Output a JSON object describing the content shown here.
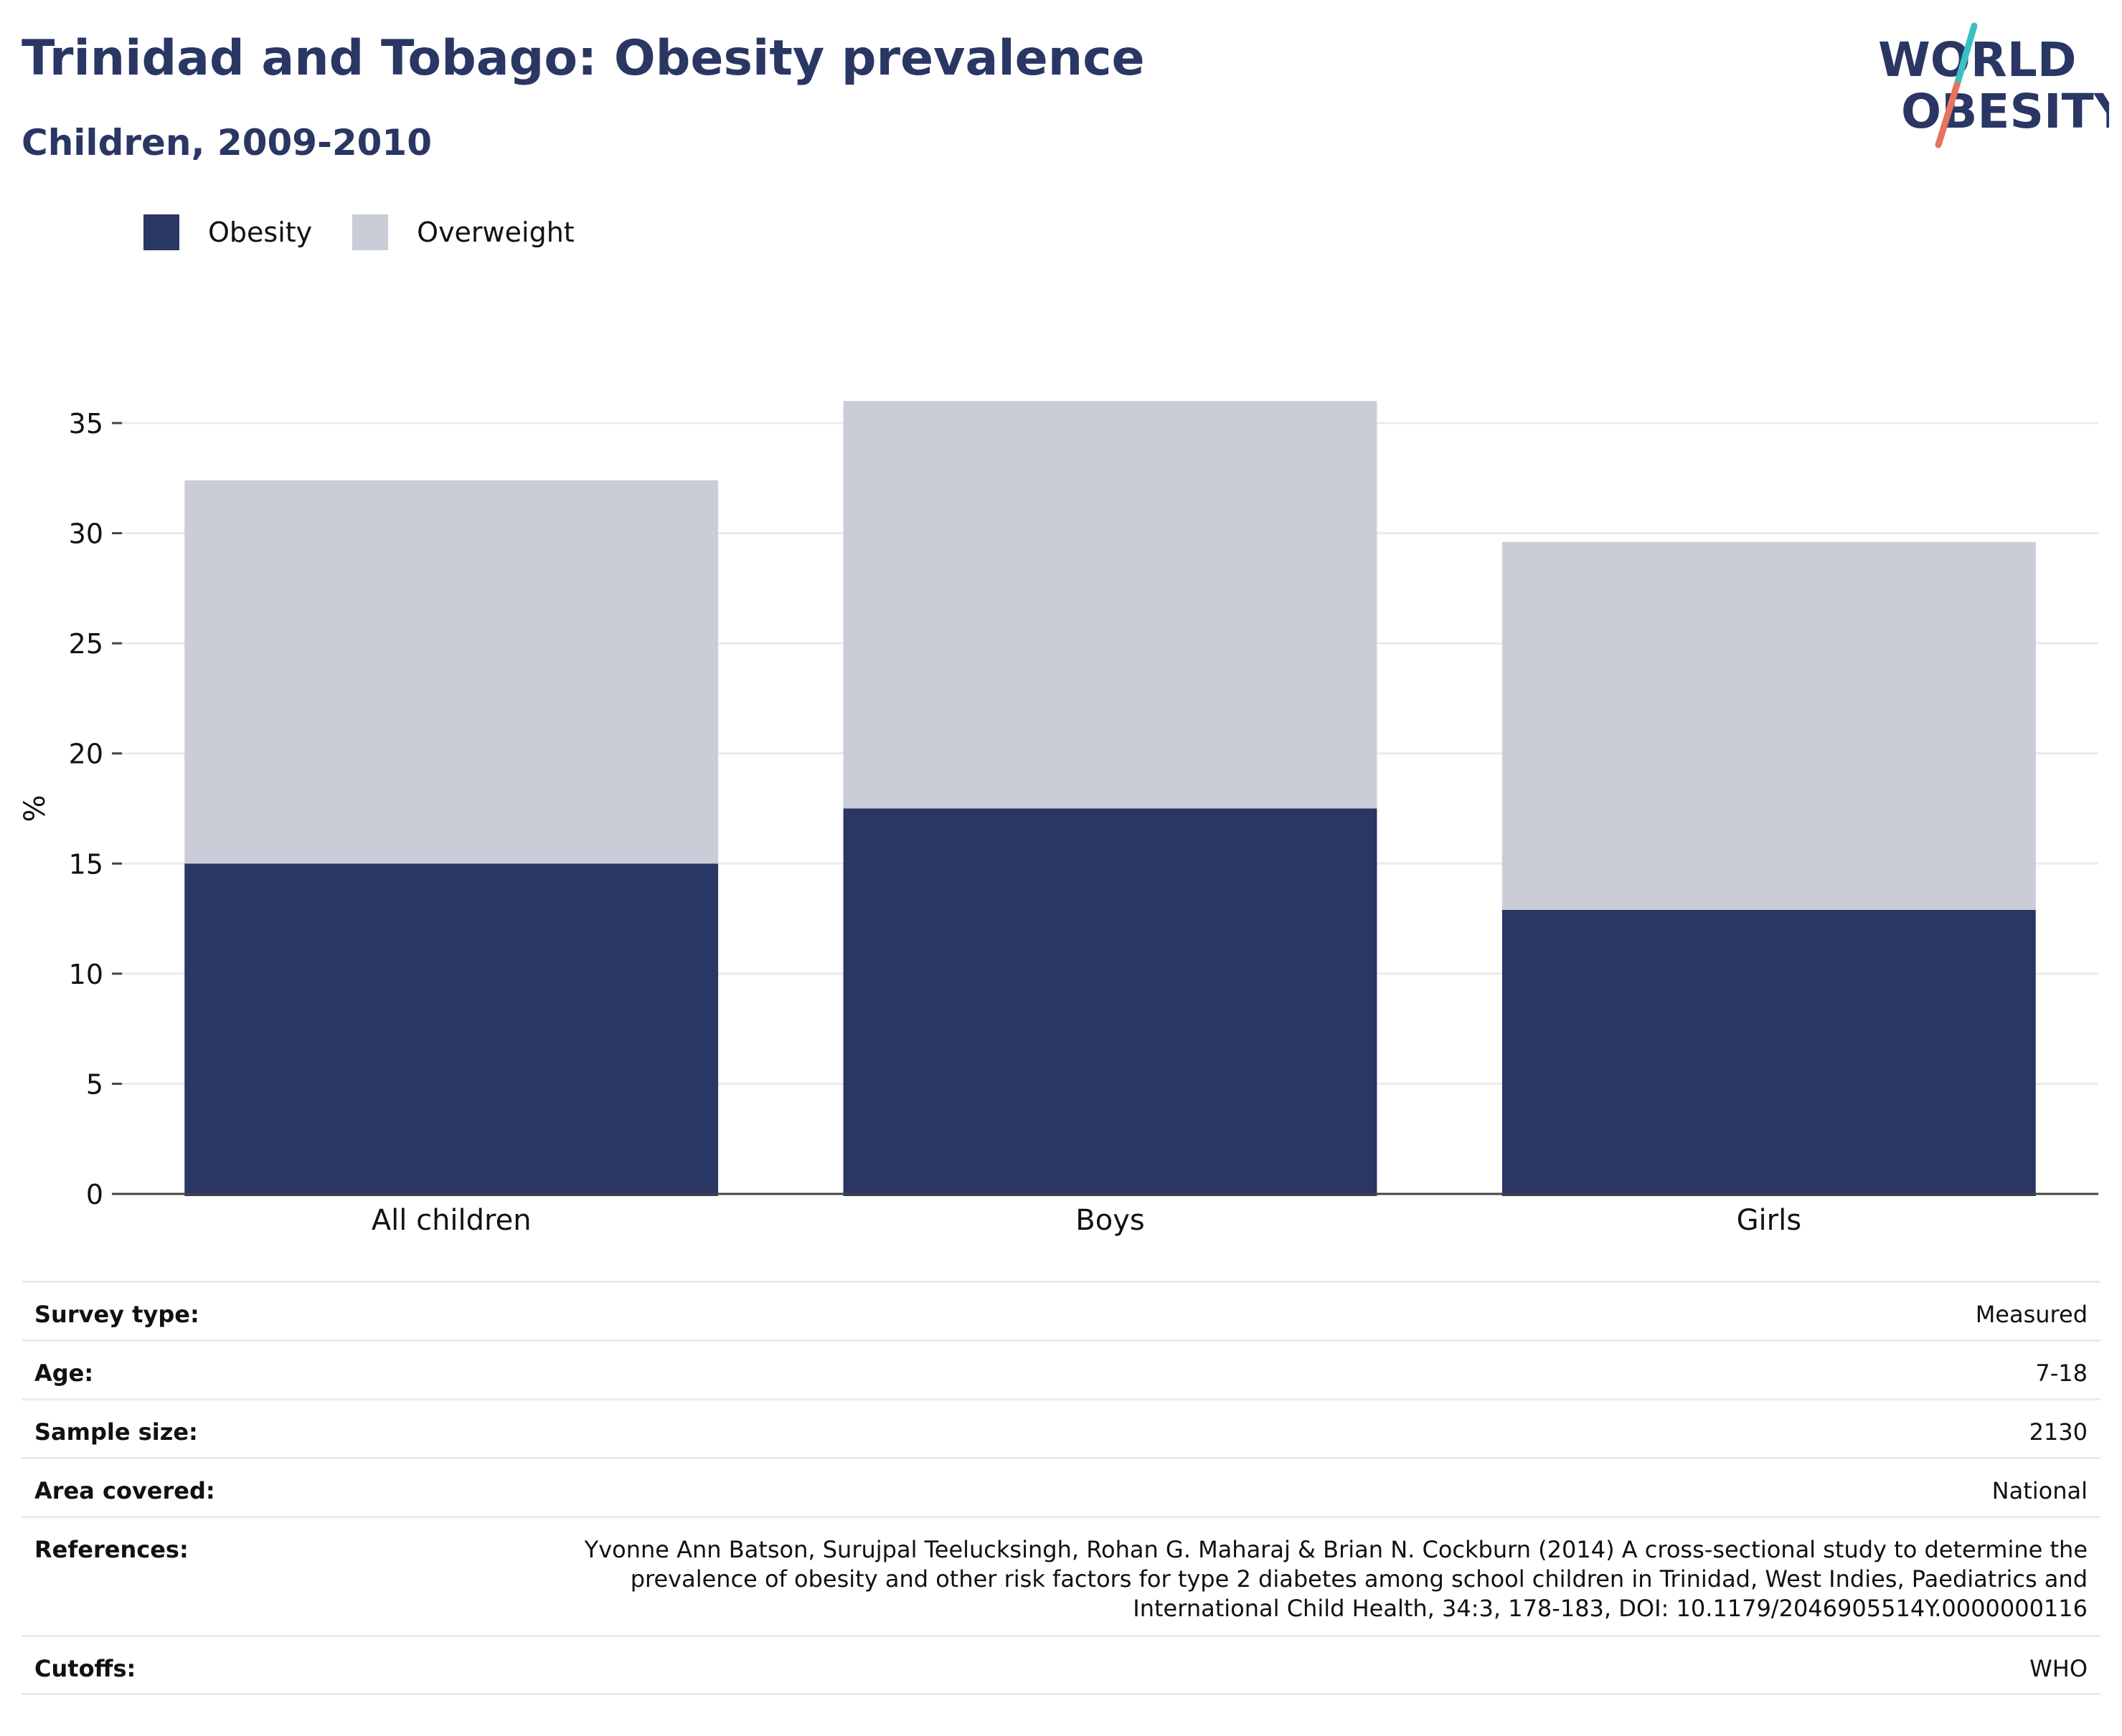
{
  "header": {
    "title": "Trinidad and Tobago: Obesity prevalence",
    "subtitle": "Children, 2009-2010"
  },
  "logo": {
    "line1": "WORLD",
    "line2": "OBESITY",
    "colors": {
      "text": "#2a3664",
      "slash_top": "#3bbfc2",
      "slash_bottom": "#e8735f"
    }
  },
  "legend": [
    {
      "label": "Obesity",
      "color": "#2a3664"
    },
    {
      "label": "Overweight",
      "color": "#cacdd8"
    }
  ],
  "chart_data": {
    "type": "bar",
    "stacked": true,
    "categories": [
      "All children",
      "Boys",
      "Girls"
    ],
    "series": [
      {
        "name": "Obesity",
        "values": [
          15.0,
          17.5,
          12.9
        ],
        "color": "#2a3664"
      },
      {
        "name": "Overweight",
        "values": [
          17.4,
          18.5,
          16.7
        ],
        "color": "#cacdd8"
      }
    ],
    "title": "Trinidad and Tobago: Obesity prevalence",
    "subtitle": "Children, 2009-2010",
    "xlabel": "",
    "ylabel": "%",
    "ylim": [
      0,
      35
    ],
    "yticks": [
      0,
      5,
      10,
      15,
      20,
      25,
      30,
      35
    ],
    "grid": true,
    "legend_position": "top-left"
  },
  "meta": [
    {
      "label": "Survey type:",
      "value": "Measured"
    },
    {
      "label": "Age:",
      "value": "7-18"
    },
    {
      "label": "Sample size:",
      "value": "2130"
    },
    {
      "label": "Area covered:",
      "value": "National"
    },
    {
      "label": "References:",
      "value": "Yvonne Ann Batson, Surujpal Teelucksingh, Rohan G. Maharaj & Brian N. Cockburn (2014) A cross-sectional study to determine the prevalence of obesity and other risk factors for type 2 diabetes among school children in Trinidad, West Indies, Paediatrics and International Child Health, 34:3, 178-183, DOI: 10.1179/2046905514Y.0000000116"
    },
    {
      "label": "Cutoffs:",
      "value": "WHO"
    }
  ]
}
